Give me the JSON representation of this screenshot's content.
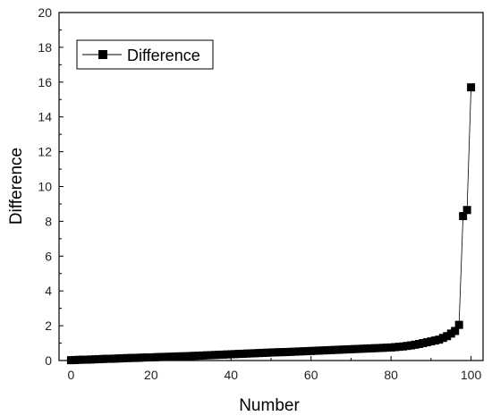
{
  "chart_data": {
    "type": "line",
    "title": "",
    "xlabel": "Number",
    "ylabel": "Difference",
    "xlim": [
      -3,
      103
    ],
    "ylim": [
      0,
      20
    ],
    "x_ticks": [
      0,
      20,
      40,
      60,
      80,
      100
    ],
    "y_ticks": [
      0,
      2,
      4,
      6,
      8,
      10,
      12,
      14,
      16,
      18,
      20
    ],
    "grid": false,
    "legend": {
      "position": "top-left"
    },
    "marker": "square",
    "series_color": "#000000",
    "series": [
      {
        "name": "Difference",
        "x": [
          0,
          1,
          2,
          3,
          4,
          5,
          6,
          7,
          8,
          9,
          10,
          11,
          12,
          13,
          14,
          15,
          16,
          17,
          18,
          19,
          20,
          21,
          22,
          23,
          24,
          25,
          26,
          27,
          28,
          29,
          30,
          31,
          32,
          33,
          34,
          35,
          36,
          37,
          38,
          39,
          40,
          41,
          42,
          43,
          44,
          45,
          46,
          47,
          48,
          49,
          50,
          51,
          52,
          53,
          54,
          55,
          56,
          57,
          58,
          59,
          60,
          61,
          62,
          63,
          64,
          65,
          66,
          67,
          68,
          69,
          70,
          71,
          72,
          73,
          74,
          75,
          76,
          77,
          78,
          79,
          80,
          81,
          82,
          83,
          84,
          85,
          86,
          87,
          88,
          89,
          90,
          91,
          92,
          93,
          94,
          95,
          96,
          97,
          98,
          99,
          100
        ],
        "values": [
          0.02,
          0.03,
          0.04,
          0.05,
          0.05,
          0.06,
          0.07,
          0.08,
          0.09,
          0.1,
          0.1,
          0.11,
          0.12,
          0.13,
          0.14,
          0.15,
          0.15,
          0.16,
          0.17,
          0.18,
          0.18,
          0.19,
          0.2,
          0.21,
          0.21,
          0.22,
          0.23,
          0.24,
          0.24,
          0.25,
          0.26,
          0.27,
          0.28,
          0.29,
          0.3,
          0.31,
          0.32,
          0.33,
          0.34,
          0.35,
          0.36,
          0.37,
          0.38,
          0.39,
          0.4,
          0.41,
          0.42,
          0.43,
          0.44,
          0.45,
          0.46,
          0.47,
          0.48,
          0.48,
          0.49,
          0.5,
          0.51,
          0.52,
          0.53,
          0.54,
          0.55,
          0.56,
          0.57,
          0.58,
          0.59,
          0.6,
          0.61,
          0.62,
          0.63,
          0.64,
          0.65,
          0.66,
          0.67,
          0.68,
          0.69,
          0.7,
          0.71,
          0.72,
          0.73,
          0.74,
          0.75,
          0.77,
          0.79,
          0.81,
          0.84,
          0.87,
          0.91,
          0.95,
          1.0,
          1.05,
          1.1,
          1.15,
          1.2,
          1.3,
          1.4,
          1.55,
          1.7,
          2.05,
          8.3,
          8.65,
          15.7
        ]
      }
    ]
  }
}
